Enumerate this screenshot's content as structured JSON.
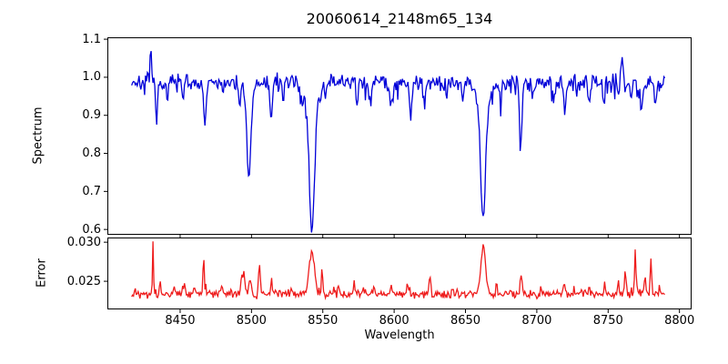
{
  "figure_title": "20060614_2148m65_134",
  "chart_data": [
    {
      "type": "line",
      "id": "spectrum-panel",
      "title": "20060614_2148m65_134",
      "ylabel": "Spectrum",
      "xlabel": "",
      "legend": null,
      "grid": false,
      "line_color": "#0000d8",
      "line_width": 1.3,
      "xlim": [
        8399,
        8808.5
      ],
      "ylim": [
        0.586,
        1.105
      ],
      "yticks": [
        1.1,
        1.0,
        0.9,
        0.8,
        0.7,
        0.6
      ],
      "ytick_labels": [
        "1.1",
        "1.0",
        "0.9",
        "0.8",
        "0.7",
        "0.6"
      ],
      "xticks": [
        8450,
        8500,
        8550,
        8600,
        8650,
        8700,
        8750,
        8800
      ],
      "xtick_labels_visible": false,
      "sampling": {
        "x_start": 8416,
        "x_end": 8790,
        "x_step": 0.65
      },
      "continuum": 0.988,
      "noise_sigma": 0.0155,
      "dip_noise_prob": 0.1,
      "dip_noise_max": 0.04,
      "absorption_lines": [
        [
          8433.5,
          0.105,
          0.8
        ],
        [
          8441,
          0.045,
          0.7
        ],
        [
          8452,
          0.045,
          0.7
        ],
        [
          8467.5,
          0.115,
          0.9
        ],
        [
          8480,
          0.04,
          0.7
        ],
        [
          8492,
          0.04,
          0.8
        ],
        [
          8498.3,
          0.2,
          1.2
        ],
        [
          8498.3,
          0.06,
          3.0
        ],
        [
          8513.8,
          0.105,
          0.8
        ],
        [
          8522,
          0.045,
          0.6
        ],
        [
          8536,
          0.04,
          0.7
        ],
        [
          8542.3,
          0.3,
          1.7
        ],
        [
          8542.3,
          0.09,
          4.0
        ],
        [
          8552,
          0.05,
          0.8
        ],
        [
          8574,
          0.06,
          0.7
        ],
        [
          8583,
          0.05,
          0.7
        ],
        [
          8598,
          0.065,
          0.8
        ],
        [
          8611.5,
          0.09,
          0.8
        ],
        [
          8621,
          0.055,
          0.7
        ],
        [
          8637,
          0.04,
          0.6
        ],
        [
          8648,
          0.05,
          0.7
        ],
        [
          8662.3,
          0.285,
          1.6
        ],
        [
          8662.3,
          0.08,
          4.0
        ],
        [
          8674.5,
          0.05,
          0.7
        ],
        [
          8688.7,
          0.145,
          0.9
        ],
        [
          8697,
          0.045,
          0.6
        ],
        [
          8712,
          0.05,
          0.7
        ],
        [
          8719.5,
          0.08,
          0.8
        ],
        [
          8728,
          0.04,
          0.6
        ],
        [
          8736.5,
          0.06,
          0.7
        ],
        [
          8747,
          0.05,
          0.7
        ],
        [
          8757,
          0.045,
          0.6
        ],
        [
          8766,
          0.055,
          0.7
        ],
        [
          8773.5,
          0.08,
          0.8
        ],
        [
          8783,
          0.055,
          0.7
        ]
      ],
      "emission_spikes": [
        [
          8429.5,
          0.075,
          0.6
        ],
        [
          8760,
          0.085,
          0.5
        ]
      ]
    },
    {
      "type": "line",
      "id": "error-panel",
      "title": "",
      "ylabel": "Error",
      "xlabel": "Wavelength",
      "legend": null,
      "grid": false,
      "line_color": "#ee1c1c",
      "line_width": 1.3,
      "xlim": [
        8399,
        8808.5
      ],
      "ylim": [
        0.0214,
        0.0306
      ],
      "yticks": [
        0.03,
        0.025
      ],
      "ytick_labels": [
        "0.030",
        "0.025"
      ],
      "xticks": [
        8450,
        8500,
        8550,
        8600,
        8650,
        8700,
        8750,
        8800
      ],
      "xtick_labels": [
        "8450",
        "8500",
        "8550",
        "8600",
        "8650",
        "8700",
        "8750",
        "8800"
      ],
      "xtick_labels_visible": true,
      "sampling": {
        "x_start": 8416,
        "x_end": 8790,
        "x_step": 0.65
      },
      "baseline": 0.02335,
      "noise_sigma": 0.00037,
      "spike_noise_prob": 0.08,
      "spike_noise_max": 0.0009,
      "error_peaks": [
        [
          8431,
          0.007,
          0.35
        ],
        [
          8436,
          0.0018,
          0.4
        ],
        [
          8446,
          0.0009,
          0.5
        ],
        [
          8453,
          0.0014,
          0.7
        ],
        [
          8460,
          0.0008,
          0.5
        ],
        [
          8466.5,
          0.005,
          0.45
        ],
        [
          8479,
          0.0009,
          0.6
        ],
        [
          8494,
          0.0026,
          1.3
        ],
        [
          8499,
          0.002,
          0.8
        ],
        [
          8505.5,
          0.0038,
          0.6
        ],
        [
          8514,
          0.0013,
          0.6
        ],
        [
          8528,
          0.0008,
          0.6
        ],
        [
          8542.3,
          0.0056,
          1.8
        ],
        [
          8549.5,
          0.0032,
          0.5
        ],
        [
          8561,
          0.001,
          0.6
        ],
        [
          8572,
          0.0013,
          0.6
        ],
        [
          8586,
          0.0009,
          0.6
        ],
        [
          8598,
          0.001,
          0.5
        ],
        [
          8609,
          0.0016,
          0.5
        ],
        [
          8625,
          0.0026,
          0.5
        ],
        [
          8641,
          0.001,
          0.5
        ],
        [
          8662.5,
          0.006,
          1.7
        ],
        [
          8672,
          0.0016,
          0.5
        ],
        [
          8689,
          0.0026,
          0.6
        ],
        [
          8703,
          0.001,
          0.5
        ],
        [
          8719,
          0.0014,
          0.6
        ],
        [
          8737,
          0.0012,
          0.5
        ],
        [
          8748,
          0.001,
          0.5
        ],
        [
          8757,
          0.0018,
          0.5
        ],
        [
          8762,
          0.0028,
          0.6
        ],
        [
          8769,
          0.005,
          0.5
        ],
        [
          8776,
          0.0028,
          0.5
        ],
        [
          8780,
          0.0046,
          0.5
        ],
        [
          8786,
          0.0012,
          0.4
        ]
      ]
    }
  ],
  "axes_color": "#000000",
  "background_color": "#ffffff"
}
